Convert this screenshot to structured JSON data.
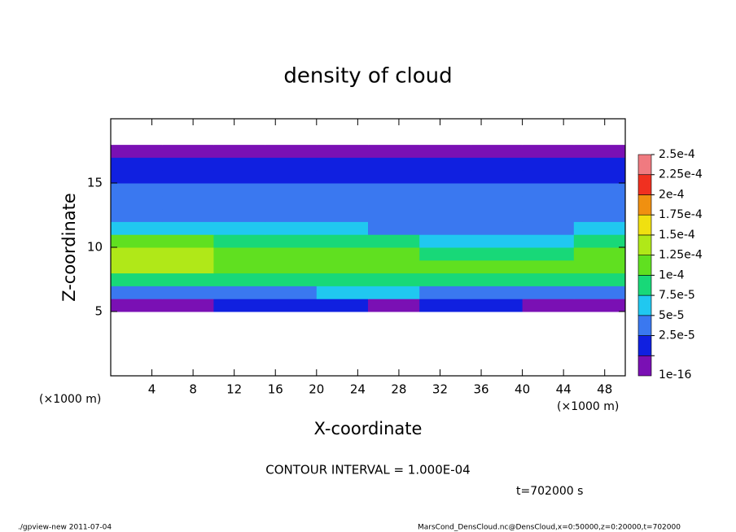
{
  "chart_data": {
    "type": "contour",
    "title": "density of cloud",
    "x_label": "X-coordinate",
    "y_label": "Z-coordinate",
    "x_unit": "(×1000 m)",
    "y_unit": "(×1000 m)",
    "xlim": [
      0,
      50
    ],
    "ylim": [
      0,
      20
    ],
    "xticks": [
      4,
      8,
      12,
      16,
      20,
      24,
      28,
      32,
      36,
      40,
      44,
      48
    ],
    "yticks": [
      5,
      10,
      15
    ],
    "contour_note": "CONTOUR INTERVAL = 1.000E-04",
    "time_note": "t=702000 s",
    "footer_left": "./gpview-new  2011-07-04",
    "footer_right": "MarsCond_DensCloud.nc@DensCloud,x=0:50000,z=0:20000,t=702000",
    "levels": [
      {
        "value": 1e-16,
        "label": "1e-16"
      },
      {
        "value": 2.5e-05,
        "label": "2.5e-5"
      },
      {
        "value": 5e-05,
        "label": "5e-5"
      },
      {
        "value": 7.5e-05,
        "label": "7.5e-5"
      },
      {
        "value": 0.0001,
        "label": "1e-4"
      },
      {
        "value": 0.000125,
        "label": "1.25e-4"
      },
      {
        "value": 0.00015,
        "label": "1.5e-4"
      },
      {
        "value": 0.000175,
        "label": "1.75e-4"
      },
      {
        "value": 0.0002,
        "label": "2e-4"
      },
      {
        "value": 0.000225,
        "label": "2.25e-4"
      },
      {
        "value": 0.00025,
        "label": "2.5e-4"
      }
    ],
    "colors": [
      "#7a10b4",
      "#1020e0",
      "#3a78f0",
      "#20c8f0",
      "#18d878",
      "#60e020",
      "#b0e818",
      "#f0e010",
      "#f09010",
      "#f03020",
      "#f07a80"
    ],
    "field": {
      "x": [
        2.5,
        7.5,
        12.5,
        17.5,
        22.5,
        27.5,
        32.5,
        37.5,
        42.5,
        47.5
      ],
      "z": [
        0.5,
        1.5,
        2.5,
        3.5,
        4.5,
        5.5,
        6.5,
        7.5,
        8.5,
        9.5,
        10.5,
        11.5,
        12.5,
        13.5,
        14.5,
        15.5,
        16.5,
        17.5,
        18.5,
        19.5
      ],
      "values": [
        [
          0,
          0,
          0,
          0,
          0,
          0,
          0,
          0,
          0,
          0
        ],
        [
          0,
          0,
          0,
          0,
          0,
          0,
          0,
          0,
          0,
          0
        ],
        [
          0,
          0,
          0,
          0,
          0,
          0,
          0,
          0,
          0,
          0
        ],
        [
          0,
          0,
          0,
          0,
          0,
          0,
          0,
          0,
          0,
          0
        ],
        [
          0,
          0,
          0,
          0,
          0,
          0,
          0,
          0,
          0,
          0
        ],
        [
          2e-05,
          2e-05,
          3e-05,
          4e-05,
          3e-05,
          2e-05,
          3e-05,
          3e-05,
          2e-05,
          2e-05
        ],
        [
          7e-05,
          7e-05,
          6e-05,
          7e-05,
          8e-05,
          8e-05,
          7e-05,
          6e-05,
          7e-05,
          7e-05
        ],
        [
          0.00012,
          0.00012,
          0.000105,
          0.000105,
          0.00011,
          0.000115,
          0.00011,
          0.000105,
          0.00011,
          0.000115
        ],
        [
          0.000155,
          0.00016,
          0.00013,
          0.000125,
          0.00013,
          0.00014,
          0.000135,
          0.000125,
          0.00013,
          0.000135
        ],
        [
          0.00015,
          0.00016,
          0.00013,
          0.000125,
          0.000125,
          0.00013,
          0.00012,
          0.00011,
          0.00012,
          0.00013
        ],
        [
          0.00013,
          0.000125,
          0.000115,
          0.00011,
          0.000105,
          0.0001,
          9e-05,
          8.5e-05,
          9.5e-05,
          0.00011
        ],
        [
          9e-05,
          8.5e-05,
          8e-05,
          8e-05,
          7.5e-05,
          7e-05,
          6.5e-05,
          6.5e-05,
          7e-05,
          8e-05
        ],
        [
          6.5e-05,
          6.5e-05,
          6e-05,
          6e-05,
          6e-05,
          6e-05,
          6e-05,
          5.5e-05,
          6e-05,
          6e-05
        ],
        [
          6e-05,
          6e-05,
          5.5e-05,
          5.5e-05,
          5.5e-05,
          5.5e-05,
          5.5e-05,
          5.5e-05,
          5.5e-05,
          5.5e-05
        ],
        [
          5.5e-05,
          5e-05,
          5e-05,
          5e-05,
          5e-05,
          5e-05,
          5e-05,
          5e-05,
          5e-05,
          5.5e-05
        ],
        [
          4.5e-05,
          4.5e-05,
          4.5e-05,
          4.5e-05,
          4.5e-05,
          4.5e-05,
          4.5e-05,
          4.5e-05,
          4.5e-05,
          4.5e-05
        ],
        [
          3e-05,
          3e-05,
          3e-05,
          3e-05,
          3e-05,
          3e-05,
          3e-05,
          3e-05,
          3e-05,
          3e-05
        ],
        [
          1e-05,
          1e-05,
          1e-05,
          1e-05,
          1e-05,
          1e-05,
          1e-05,
          1e-05,
          1e-05,
          1e-05
        ],
        [
          0,
          0,
          0,
          0,
          0,
          0,
          0,
          0,
          0,
          0
        ],
        [
          0,
          0,
          0,
          0,
          0,
          0,
          0,
          0,
          0,
          0
        ]
      ]
    }
  }
}
